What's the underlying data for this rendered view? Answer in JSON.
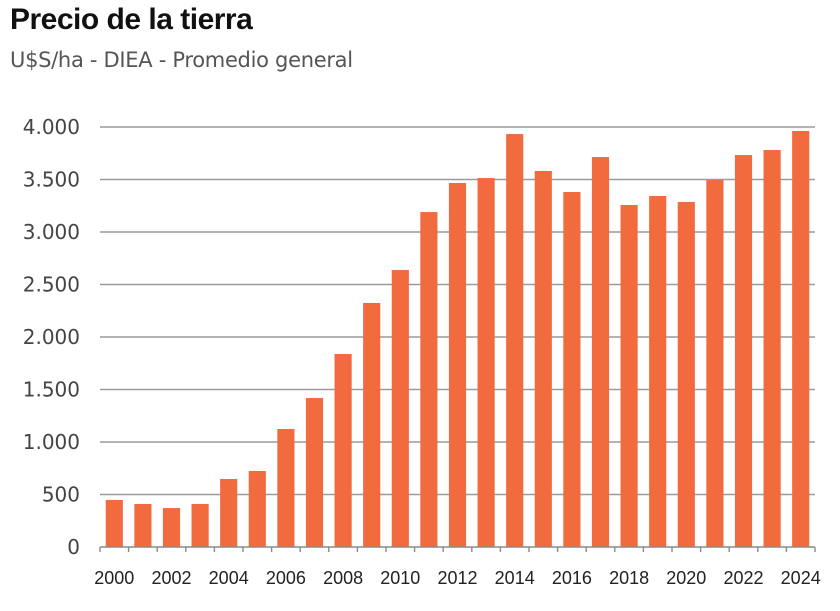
{
  "chart_data": {
    "type": "bar",
    "title": "Precio de la tierra",
    "subtitle": "U$S/ha - DIEA - Promedio general",
    "xlabel": "",
    "ylabel": "",
    "ylim": [
      0,
      4000
    ],
    "grid": true,
    "bar_color": "#f26b3f",
    "grid_color": "#9a9a9a",
    "yticks": [
      0,
      500,
      1000,
      1500,
      2000,
      2500,
      3000,
      3500,
      4000
    ],
    "ytick_labels": [
      "0",
      "500",
      "1.000",
      "1.500",
      "2.000",
      "2.500",
      "3.000",
      "3.500",
      "4.000"
    ],
    "categories": [
      "2000",
      "2001",
      "2002",
      "2003",
      "2004",
      "2005",
      "2006",
      "2007",
      "2008",
      "2009",
      "2010",
      "2011",
      "2012",
      "2013",
      "2014",
      "2015",
      "2016",
      "2017",
      "2018",
      "2019",
      "2020",
      "2021",
      "2022",
      "2023",
      "2024"
    ],
    "xtick_labels": [
      "2000",
      "2002",
      "2004",
      "2006",
      "2008",
      "2010",
      "2012",
      "2014",
      "2016",
      "2018",
      "2020",
      "2022",
      "2024"
    ],
    "values": [
      448,
      410,
      371,
      410,
      648,
      724,
      1124,
      1419,
      1838,
      2324,
      2638,
      3190,
      3467,
      3514,
      3933,
      3581,
      3381,
      3714,
      3257,
      3343,
      3286,
      3495,
      3733,
      3781,
      3962
    ]
  }
}
